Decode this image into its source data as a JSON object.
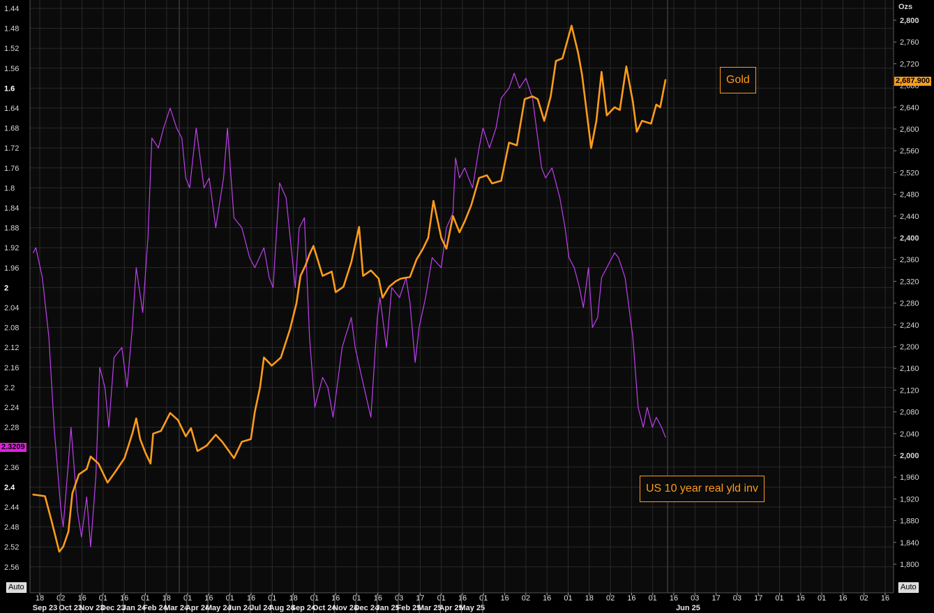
{
  "chart_data": {
    "type": "line",
    "left_axis": {
      "label": "",
      "inverted": true,
      "range": [
        1.42,
        2.6
      ],
      "ticks": [
        "1.44",
        "1.48",
        "1.52",
        "1.56",
        "1.6",
        "1.64",
        "1.68",
        "1.72",
        "1.76",
        "1.8",
        "1.84",
        "1.88",
        "1.92",
        "1.96",
        "2",
        "2.04",
        "2.08",
        "2.12",
        "2.16",
        "2.2",
        "2.24",
        "2.28",
        "2.32",
        "2.36",
        "2.4",
        "2.44",
        "2.48",
        "2.52",
        "2.56"
      ],
      "bold_ticks": [
        "1.6",
        "2",
        "2.4"
      ]
    },
    "right_axis": {
      "label": "Ozs",
      "range": [
        1760,
        2830
      ],
      "ticks": [
        "2,800",
        "2,760",
        "2,720",
        "2,680",
        "2,640",
        "2,600",
        "2,560",
        "2,520",
        "2,480",
        "2,440",
        "2,400",
        "2,360",
        "2,320",
        "2,280",
        "2,240",
        "2,200",
        "2,160",
        "2,120",
        "2,080",
        "2,040",
        "2,000",
        "1,960",
        "1,920",
        "1,880",
        "1,840",
        "1,800"
      ],
      "bold_ticks": [
        "2,800",
        "2,400",
        "2,000"
      ]
    },
    "x_axis": {
      "day_ticks": [
        "18",
        "02",
        "16",
        "01",
        "16",
        "01",
        "18",
        "01",
        "16",
        "01",
        "16",
        "01",
        "18",
        "01",
        "16",
        "01",
        "16",
        "03",
        "17",
        "01",
        "16",
        "01",
        "16",
        "02",
        "16",
        "01",
        "18",
        "02",
        "16",
        "01",
        "16",
        "03",
        "17",
        "03",
        "17",
        "01",
        "16",
        "01",
        "16",
        "02",
        "16"
      ],
      "months": [
        "Sep 23",
        "Oct 23",
        "Nov 23",
        "Dec 23",
        "Jan 24",
        "Feb 24",
        "Mar 24",
        "Apr 24",
        "May 24",
        "Jun 24",
        "Jul 24",
        "Aug 24",
        "Sep 24",
        "Oct 24",
        "Nov 24",
        "Dec 24",
        "Jan 25",
        "Feb 25",
        "Mar 25",
        "Apr 25",
        "May 25",
        "Jun 25"
      ]
    },
    "series": [
      {
        "name": "Gold",
        "axis": "right",
        "color": "#ff9c1a",
        "last_value": "2,687.900",
        "points": [
          [
            "2023-09-13",
            1928
          ],
          [
            "2023-09-22",
            1925
          ],
          [
            "2023-09-27",
            1880
          ],
          [
            "2023-10-03",
            1823
          ],
          [
            "2023-10-06",
            1832
          ],
          [
            "2023-10-10",
            1860
          ],
          [
            "2023-10-13",
            1930
          ],
          [
            "2023-10-18",
            1965
          ],
          [
            "2023-10-24",
            1975
          ],
          [
            "2023-10-27",
            1998
          ],
          [
            "2023-11-02",
            1985
          ],
          [
            "2023-11-09",
            1950
          ],
          [
            "2023-11-15",
            1970
          ],
          [
            "2023-11-22",
            1995
          ],
          [
            "2023-11-28",
            2040
          ],
          [
            "2023-12-01",
            2068
          ],
          [
            "2023-12-04",
            2030
          ],
          [
            "2023-12-08",
            2005
          ],
          [
            "2023-12-12",
            1985
          ],
          [
            "2023-12-14",
            2040
          ],
          [
            "2023-12-20",
            2045
          ],
          [
            "2023-12-27",
            2078
          ],
          [
            "2024-01-02",
            2065
          ],
          [
            "2024-01-08",
            2035
          ],
          [
            "2024-01-12",
            2050
          ],
          [
            "2024-01-17",
            2008
          ],
          [
            "2024-01-24",
            2018
          ],
          [
            "2024-01-31",
            2038
          ],
          [
            "2024-02-05",
            2025
          ],
          [
            "2024-02-14",
            1995
          ],
          [
            "2024-02-20",
            2025
          ],
          [
            "2024-02-27",
            2030
          ],
          [
            "2024-03-01",
            2080
          ],
          [
            "2024-03-05",
            2125
          ],
          [
            "2024-03-08",
            2180
          ],
          [
            "2024-03-14",
            2165
          ],
          [
            "2024-03-21",
            2180
          ],
          [
            "2024-03-28",
            2232
          ],
          [
            "2024-04-02",
            2280
          ],
          [
            "2024-04-05",
            2330
          ],
          [
            "2024-04-09",
            2350
          ],
          [
            "2024-04-12",
            2370
          ],
          [
            "2024-04-15",
            2385
          ],
          [
            "2024-04-22",
            2330
          ],
          [
            "2024-04-29",
            2338
          ],
          [
            "2024-05-02",
            2300
          ],
          [
            "2024-05-08",
            2310
          ],
          [
            "2024-05-14",
            2355
          ],
          [
            "2024-05-20",
            2420
          ],
          [
            "2024-05-23",
            2330
          ],
          [
            "2024-05-29",
            2340
          ],
          [
            "2024-06-04",
            2325
          ],
          [
            "2024-06-07",
            2290
          ],
          [
            "2024-06-12",
            2310
          ],
          [
            "2024-06-17",
            2320
          ],
          [
            "2024-06-21",
            2325
          ],
          [
            "2024-06-28",
            2328
          ],
          [
            "2024-07-03",
            2360
          ],
          [
            "2024-07-08",
            2380
          ],
          [
            "2024-07-12",
            2400
          ],
          [
            "2024-07-16",
            2468
          ],
          [
            "2024-07-22",
            2400
          ],
          [
            "2024-07-26",
            2380
          ],
          [
            "2024-07-31",
            2440
          ],
          [
            "2024-08-05",
            2410
          ],
          [
            "2024-08-09",
            2430
          ],
          [
            "2024-08-14",
            2460
          ],
          [
            "2024-08-20",
            2510
          ],
          [
            "2024-08-26",
            2515
          ],
          [
            "2024-08-30",
            2500
          ],
          [
            "2024-09-06",
            2505
          ],
          [
            "2024-09-12",
            2575
          ],
          [
            "2024-09-18",
            2570
          ],
          [
            "2024-09-24",
            2655
          ],
          [
            "2024-09-30",
            2660
          ],
          [
            "2024-10-04",
            2655
          ],
          [
            "2024-10-09",
            2615
          ],
          [
            "2024-10-14",
            2660
          ],
          [
            "2024-10-18",
            2725
          ],
          [
            "2024-10-23",
            2730
          ],
          [
            "2024-10-30",
            2790
          ],
          [
            "2024-11-04",
            2740
          ],
          [
            "2024-11-07",
            2700
          ],
          [
            "2024-11-14",
            2565
          ],
          [
            "2024-11-18",
            2615
          ],
          [
            "2024-11-22",
            2705
          ],
          [
            "2024-11-26",
            2625
          ],
          [
            "2024-12-02",
            2640
          ],
          [
            "2024-12-06",
            2635
          ],
          [
            "2024-12-11",
            2715
          ],
          [
            "2024-12-16",
            2650
          ],
          [
            "2024-12-19",
            2595
          ],
          [
            "2024-12-23",
            2615
          ],
          [
            "2024-12-30",
            2610
          ],
          [
            "2025-01-03",
            2645
          ],
          [
            "2025-01-06",
            2640
          ],
          [
            "2025-01-10",
            2690
          ]
        ]
      },
      {
        "name": "US 10 year real yld inv",
        "axis": "left",
        "color": "#c040f0",
        "last_value": "2.3209",
        "points": [
          [
            "2023-09-13",
            1.93
          ],
          [
            "2023-09-15",
            1.92
          ],
          [
            "2023-09-20",
            1.98
          ],
          [
            "2023-09-25",
            2.1
          ],
          [
            "2023-09-29",
            2.28
          ],
          [
            "2023-10-04",
            2.44
          ],
          [
            "2023-10-06",
            2.48
          ],
          [
            "2023-10-10",
            2.35
          ],
          [
            "2023-10-12",
            2.28
          ],
          [
            "2023-10-17",
            2.45
          ],
          [
            "2023-10-20",
            2.5
          ],
          [
            "2023-10-24",
            2.42
          ],
          [
            "2023-10-27",
            2.52
          ],
          [
            "2023-10-31",
            2.38
          ],
          [
            "2023-11-03",
            2.16
          ],
          [
            "2023-11-07",
            2.2
          ],
          [
            "2023-11-10",
            2.28
          ],
          [
            "2023-11-14",
            2.14
          ],
          [
            "2023-11-20",
            2.12
          ],
          [
            "2023-11-24",
            2.2
          ],
          [
            "2023-11-28",
            2.08
          ],
          [
            "2023-12-01",
            1.96
          ],
          [
            "2023-12-06",
            2.05
          ],
          [
            "2023-12-10",
            1.9
          ],
          [
            "2023-12-13",
            1.7
          ],
          [
            "2023-12-18",
            1.72
          ],
          [
            "2023-12-22",
            1.68
          ],
          [
            "2023-12-27",
            1.64
          ],
          [
            "2024-01-01",
            1.68
          ],
          [
            "2024-01-05",
            1.7
          ],
          [
            "2024-01-08",
            1.78
          ],
          [
            "2024-01-11",
            1.8
          ],
          [
            "2024-01-16",
            1.68
          ],
          [
            "2024-01-22",
            1.8
          ],
          [
            "2024-01-26",
            1.78
          ],
          [
            "2024-01-31",
            1.88
          ],
          [
            "2024-02-06",
            1.78
          ],
          [
            "2024-02-09",
            1.68
          ],
          [
            "2024-02-14",
            1.86
          ],
          [
            "2024-02-20",
            1.88
          ],
          [
            "2024-02-26",
            1.94
          ],
          [
            "2024-03-01",
            1.96
          ],
          [
            "2024-03-08",
            1.92
          ],
          [
            "2024-03-12",
            1.98
          ],
          [
            "2024-03-15",
            2.0
          ],
          [
            "2024-03-20",
            1.79
          ],
          [
            "2024-03-25",
            1.82
          ],
          [
            "2024-04-01",
            2.0
          ],
          [
            "2024-04-04",
            1.88
          ],
          [
            "2024-04-08",
            1.86
          ],
          [
            "2024-04-12",
            2.1
          ],
          [
            "2024-04-16",
            2.24
          ],
          [
            "2024-04-22",
            2.18
          ],
          [
            "2024-04-26",
            2.2
          ],
          [
            "2024-04-30",
            2.26
          ],
          [
            "2024-05-03",
            2.2
          ],
          [
            "2024-05-07",
            2.12
          ],
          [
            "2024-05-14",
            2.06
          ],
          [
            "2024-05-17",
            2.12
          ],
          [
            "2024-05-22",
            2.18
          ],
          [
            "2024-05-29",
            2.26
          ],
          [
            "2024-06-03",
            2.06
          ],
          [
            "2024-06-05",
            2.02
          ],
          [
            "2024-06-10",
            2.12
          ],
          [
            "2024-06-14",
            2.0
          ],
          [
            "2024-06-20",
            2.02
          ],
          [
            "2024-06-25",
            1.98
          ],
          [
            "2024-06-28",
            2.03
          ],
          [
            "2024-07-02",
            2.15
          ],
          [
            "2024-07-05",
            2.08
          ],
          [
            "2024-07-10",
            2.02
          ],
          [
            "2024-07-15",
            1.94
          ],
          [
            "2024-07-22",
            1.96
          ],
          [
            "2024-07-26",
            1.88
          ],
          [
            "2024-07-31",
            1.85
          ],
          [
            "2024-08-02",
            1.74
          ],
          [
            "2024-08-05",
            1.78
          ],
          [
            "2024-08-09",
            1.76
          ],
          [
            "2024-08-15",
            1.8
          ],
          [
            "2024-08-20",
            1.72
          ],
          [
            "2024-08-23",
            1.68
          ],
          [
            "2024-08-28",
            1.72
          ],
          [
            "2024-09-02",
            1.68
          ],
          [
            "2024-09-06",
            1.62
          ],
          [
            "2024-09-12",
            1.6
          ],
          [
            "2024-09-16",
            1.57
          ],
          [
            "2024-09-20",
            1.6
          ],
          [
            "2024-09-25",
            1.58
          ],
          [
            "2024-09-30",
            1.62
          ],
          [
            "2024-10-03",
            1.68
          ],
          [
            "2024-10-07",
            1.76
          ],
          [
            "2024-10-10",
            1.78
          ],
          [
            "2024-10-15",
            1.76
          ],
          [
            "2024-10-21",
            1.82
          ],
          [
            "2024-10-25",
            1.88
          ],
          [
            "2024-10-28",
            1.94
          ],
          [
            "2024-11-01",
            1.96
          ],
          [
            "2024-11-05",
            2.0
          ],
          [
            "2024-11-08",
            2.04
          ],
          [
            "2024-11-12",
            1.96
          ],
          [
            "2024-11-15",
            2.08
          ],
          [
            "2024-11-19",
            2.06
          ],
          [
            "2024-11-22",
            1.98
          ],
          [
            "2024-11-26",
            1.96
          ],
          [
            "2024-12-02",
            1.93
          ],
          [
            "2024-12-05",
            1.94
          ],
          [
            "2024-12-10",
            1.98
          ],
          [
            "2024-12-16",
            2.1
          ],
          [
            "2024-12-20",
            2.24
          ],
          [
            "2024-12-24",
            2.28
          ],
          [
            "2024-12-27",
            2.24
          ],
          [
            "2024-12-31",
            2.28
          ],
          [
            "2025-01-03",
            2.26
          ],
          [
            "2025-01-07",
            2.28
          ],
          [
            "2025-01-10",
            2.3
          ]
        ]
      }
    ],
    "annotations": [
      {
        "text": "Gold"
      },
      {
        "text": "US 10 year real yld inv"
      }
    ]
  },
  "controls": {
    "left_auto": "Auto",
    "right_auto": "Auto"
  },
  "colors": {
    "background": "#0b0b0b",
    "grid": "#2a2a2a",
    "gold": "#ff9c1a",
    "yield": "#c040f0"
  }
}
